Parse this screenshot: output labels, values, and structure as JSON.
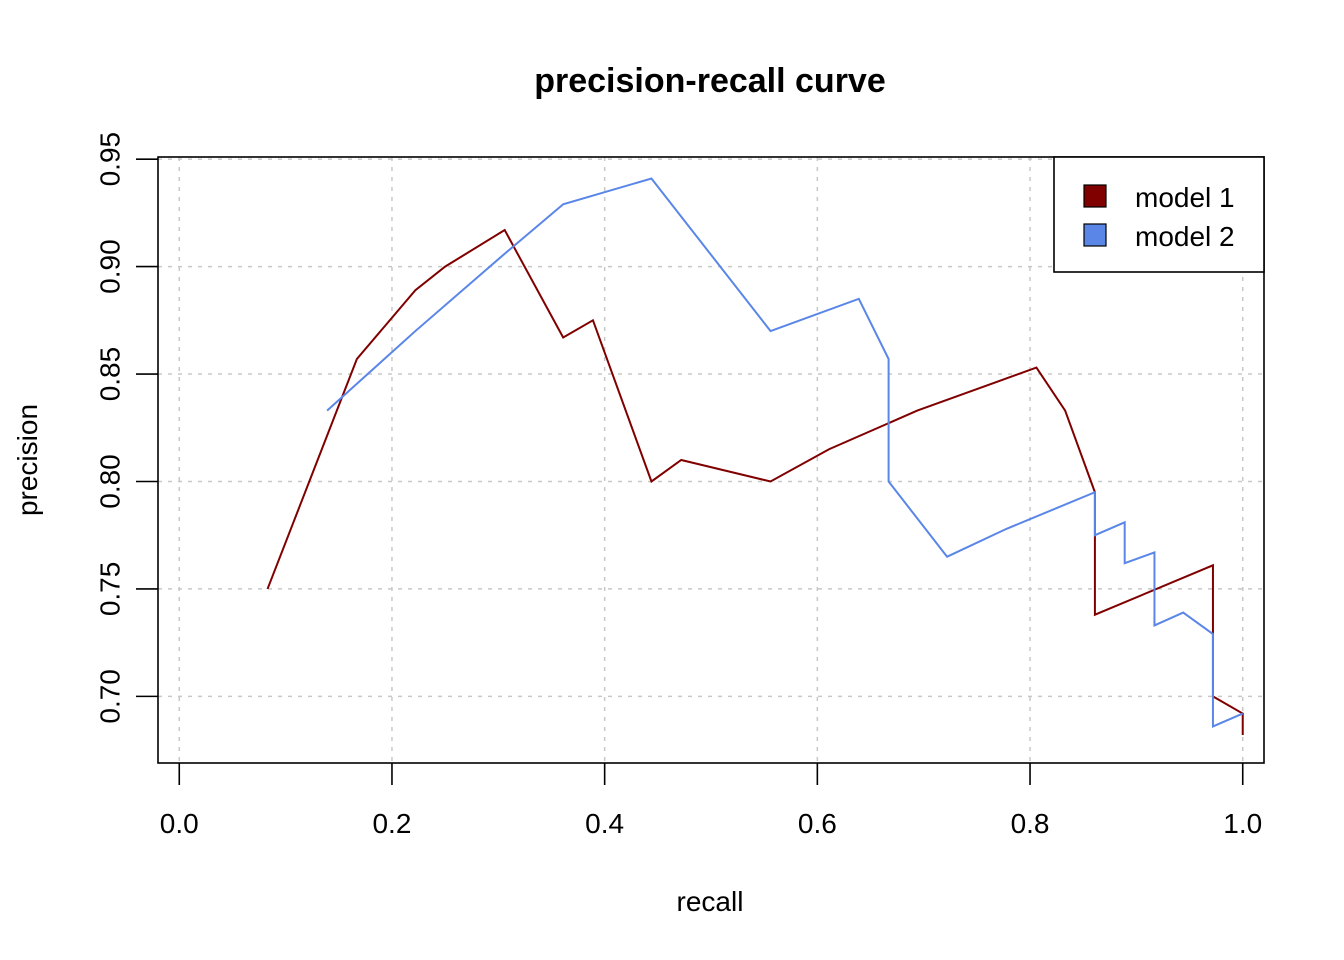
{
  "chart_data": {
    "type": "line",
    "title": "precision-recall curve",
    "xlabel": "recall",
    "ylabel": "precision",
    "xlim": [
      -0.02,
      1.02
    ],
    "ylim": [
      0.669,
      0.951
    ],
    "xticks": [
      0.0,
      0.2,
      0.4,
      0.6,
      0.8,
      1.0
    ],
    "yticks": [
      0.7,
      0.75,
      0.8,
      0.85,
      0.9,
      0.95
    ],
    "xtick_labels": [
      "0.0",
      "0.2",
      "0.4",
      "0.6",
      "0.8",
      "1.0"
    ],
    "ytick_labels": [
      "0.70",
      "0.75",
      "0.80",
      "0.85",
      "0.90",
      "0.95"
    ],
    "grid": true,
    "legend_position": "top-right",
    "series": [
      {
        "name": "model 1",
        "color": "#800000",
        "x": [
          0.083,
          0.167,
          0.222,
          0.25,
          0.306,
          0.361,
          0.389,
          0.444,
          0.472,
          0.556,
          0.611,
          0.694,
          0.778,
          0.806,
          0.833,
          0.861,
          0.861,
          0.861,
          0.972,
          0.972,
          1.0,
          1.0
        ],
        "y": [
          0.75,
          0.857,
          0.889,
          0.9,
          0.917,
          0.867,
          0.875,
          0.8,
          0.81,
          0.8,
          0.815,
          0.833,
          0.848,
          0.853,
          0.833,
          0.795,
          0.791,
          0.738,
          0.761,
          0.7,
          0.692,
          0.682
        ]
      },
      {
        "name": "model 2",
        "color": "#5a86e8",
        "x": [
          0.139,
          0.222,
          0.306,
          0.361,
          0.444,
          0.556,
          0.639,
          0.667,
          0.667,
          0.722,
          0.778,
          0.861,
          0.861,
          0.889,
          0.889,
          0.917,
          0.917,
          0.944,
          0.972,
          0.972,
          0.972,
          1.0
        ],
        "y": [
          0.833,
          0.87,
          0.906,
          0.929,
          0.941,
          0.87,
          0.885,
          0.857,
          0.8,
          0.765,
          0.778,
          0.795,
          0.775,
          0.781,
          0.762,
          0.767,
          0.733,
          0.739,
          0.729,
          0.7,
          0.686,
          0.692
        ]
      }
    ]
  }
}
